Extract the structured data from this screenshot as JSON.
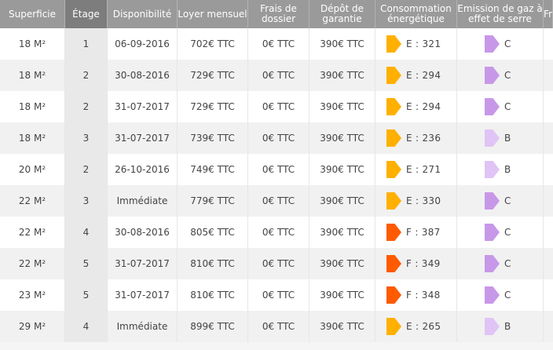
{
  "headers": {
    "superficie": "Superficie",
    "etage": "Étage",
    "disponibilite": "Disponibilité",
    "loyer": "Loyer mensuel",
    "frais": "Frais de dossier",
    "depot": "Dépôt de garantie",
    "consommation": "Consommation énergétique",
    "emission": "Emission de gaz à effet de serre",
    "next": "Fr"
  },
  "colors": {
    "energy_E": "#ffb000",
    "energy_F": "#ff5a00",
    "gas_C": "#c898e8",
    "gas_B": "#e0c4f5",
    "header_bg": "#9a9a9a"
  },
  "rows": [
    {
      "superficie": "18 M²",
      "etage": "1",
      "disponibilite": "06-09-2016",
      "loyer": "702€ TTC",
      "frais": "0€ TTC",
      "depot": "390€ TTC",
      "conso_class": "E",
      "conso": "E : 321",
      "gas": "C"
    },
    {
      "superficie": "18 M²",
      "etage": "2",
      "disponibilite": "30-08-2016",
      "loyer": "729€ TTC",
      "frais": "0€ TTC",
      "depot": "390€ TTC",
      "conso_class": "E",
      "conso": "E : 294",
      "gas": "C"
    },
    {
      "superficie": "18 M²",
      "etage": "2",
      "disponibilite": "31-07-2017",
      "loyer": "729€ TTC",
      "frais": "0€ TTC",
      "depot": "390€ TTC",
      "conso_class": "E",
      "conso": "E : 294",
      "gas": "C"
    },
    {
      "superficie": "18 M²",
      "etage": "3",
      "disponibilite": "31-07-2017",
      "loyer": "739€ TTC",
      "frais": "0€ TTC",
      "depot": "390€ TTC",
      "conso_class": "E",
      "conso": "E : 236",
      "gas": "B"
    },
    {
      "superficie": "20 M²",
      "etage": "2",
      "disponibilite": "26-10-2016",
      "loyer": "749€ TTC",
      "frais": "0€ TTC",
      "depot": "390€ TTC",
      "conso_class": "E",
      "conso": "E : 271",
      "gas": "B"
    },
    {
      "superficie": "22 M²",
      "etage": "3",
      "disponibilite": "Immédiate",
      "loyer": "779€ TTC",
      "frais": "0€ TTC",
      "depot": "390€ TTC",
      "conso_class": "E",
      "conso": "E : 330",
      "gas": "C"
    },
    {
      "superficie": "22 M²",
      "etage": "4",
      "disponibilite": "30-08-2016",
      "loyer": "805€ TTC",
      "frais": "0€ TTC",
      "depot": "390€ TTC",
      "conso_class": "F",
      "conso": "F : 387",
      "gas": "C"
    },
    {
      "superficie": "22 M²",
      "etage": "5",
      "disponibilite": "31-07-2017",
      "loyer": "810€ TTC",
      "frais": "0€ TTC",
      "depot": "390€ TTC",
      "conso_class": "F",
      "conso": "F : 349",
      "gas": "C"
    },
    {
      "superficie": "23 M²",
      "etage": "5",
      "disponibilite": "31-07-2017",
      "loyer": "810€ TTC",
      "frais": "0€ TTC",
      "depot": "390€ TTC",
      "conso_class": "F",
      "conso": "F : 348",
      "gas": "C"
    },
    {
      "superficie": "29 M²",
      "etage": "4",
      "disponibilite": "Immédiate",
      "loyer": "899€ TTC",
      "frais": "0€ TTC",
      "depot": "390€ TTC",
      "conso_class": "E",
      "conso": "E : 265",
      "gas": "B"
    }
  ]
}
